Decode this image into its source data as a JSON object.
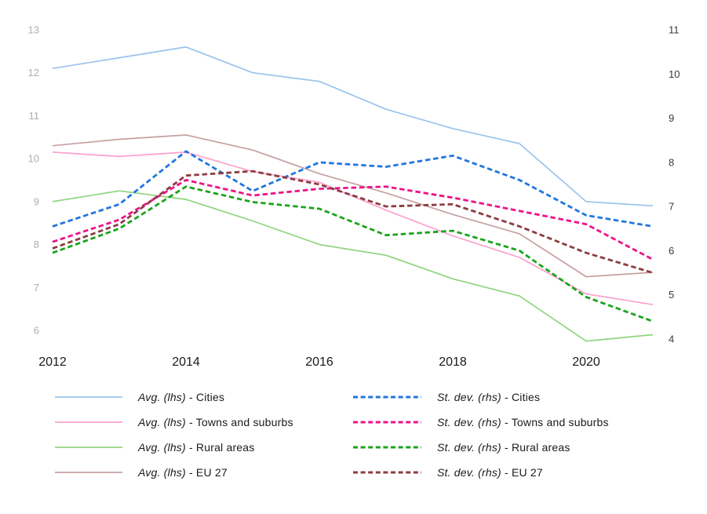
{
  "chart_data": {
    "type": "line",
    "title": "",
    "xlabel": "",
    "ylabel_left": "",
    "ylabel_right": "",
    "grid": false,
    "legend_position": "bottom-two-columns",
    "x": [
      2012,
      2013,
      2014,
      2015,
      2016,
      2017,
      2018,
      2019,
      2020,
      2021
    ],
    "x_tick_years": [
      2012,
      2014,
      2016,
      2018,
      2020
    ],
    "x_axis": {
      "tick_color": "#1a1a1a"
    },
    "left_axis": {
      "range": [
        6,
        13
      ],
      "ticks": [
        13,
        12,
        11,
        10,
        9,
        8,
        7,
        6
      ],
      "tick_color": "#aeaeae"
    },
    "right_axis": {
      "range": [
        4,
        11
      ],
      "ticks": [
        11,
        10,
        9,
        8,
        7,
        6,
        5,
        4
      ],
      "tick_color": "#3a3a3a"
    },
    "series": [
      {
        "id": "avg-lhs-cities",
        "name": "Avg. (lhs) - Cities",
        "axis": "lhs",
        "style": "solid",
        "color": "#9AC4EC",
        "values": [
          12.1,
          12.35,
          12.6,
          12.0,
          11.8,
          11.15,
          10.7,
          10.35,
          9.0,
          8.9
        ]
      },
      {
        "id": "avg-lhs-towns-and-suburbs",
        "name": "Avg. (lhs) - Towns and suburbs",
        "axis": "lhs",
        "style": "solid",
        "color": "#FCA2CE",
        "values": [
          10.15,
          10.05,
          10.15,
          9.7,
          9.45,
          8.8,
          8.2,
          7.7,
          6.85,
          6.6
        ]
      },
      {
        "id": "avg-lhs-rural-areas",
        "name": "Avg. (lhs) - Rural areas",
        "axis": "lhs",
        "style": "solid",
        "color": "#90D47F",
        "values": [
          9.0,
          9.25,
          9.05,
          8.55,
          8.0,
          7.75,
          7.2,
          6.8,
          5.75,
          5.9
        ]
      },
      {
        "id": "avg-lhs-eu-27",
        "name": "Avg. (lhs) - EU 27",
        "axis": "lhs",
        "style": "solid",
        "color": "#C7A0A0",
        "values": [
          10.3,
          10.45,
          10.55,
          10.2,
          9.65,
          9.2,
          8.7,
          8.25,
          7.25,
          7.35
        ]
      },
      {
        "id": "st-dev-rhs-cities",
        "name": "St. dev. (rhs) - Cities",
        "axis": "rhs",
        "style": "dashed",
        "color": "#2176DE",
        "values": [
          6.55,
          7.05,
          8.25,
          7.35,
          8.0,
          7.9,
          8.15,
          7.6,
          6.8,
          6.55
        ]
      },
      {
        "id": "st-dev-rhs-towns-and-suburbs",
        "name": "St. dev. (rhs) - Towns and suburbs",
        "axis": "rhs",
        "style": "dashed",
        "color": "#EE128B",
        "values": [
          6.2,
          6.7,
          7.6,
          7.25,
          7.4,
          7.45,
          7.2,
          6.9,
          6.6,
          5.8
        ]
      },
      {
        "id": "st-dev-rhs-rural-areas",
        "name": "St. dev. (rhs) - Rural areas",
        "axis": "rhs",
        "style": "dashed",
        "color": "#1CA31C",
        "values": [
          5.95,
          6.5,
          7.45,
          7.1,
          6.95,
          6.35,
          6.45,
          6.0,
          4.95,
          4.4
        ]
      },
      {
        "id": "st-dev-rhs-eu-27",
        "name": "St. dev. (rhs) - EU 27",
        "axis": "rhs",
        "style": "dashed",
        "color": "#8C3D42",
        "values": [
          6.05,
          6.6,
          7.7,
          7.8,
          7.5,
          7.0,
          7.05,
          6.55,
          5.95,
          5.5
        ]
      }
    ]
  },
  "legend": {
    "items": [
      {
        "prefix": "Avg. (lhs)",
        "rest": " - Cities"
      },
      {
        "prefix": "Avg. (lhs)",
        "rest": " - Towns and suburbs"
      },
      {
        "prefix": "Avg. (lhs)",
        "rest": " - Rural areas"
      },
      {
        "prefix": "Avg. (lhs)",
        "rest": " - EU 27"
      },
      {
        "prefix": "St. dev. (rhs)",
        "rest": " - Cities"
      },
      {
        "prefix": "St. dev. (rhs)",
        "rest": " - Towns and suburbs"
      },
      {
        "prefix": "St. dev. (rhs)",
        "rest": " - Rural areas"
      },
      {
        "prefix": "St. dev. (rhs)",
        "rest": " - EU 27"
      }
    ]
  }
}
